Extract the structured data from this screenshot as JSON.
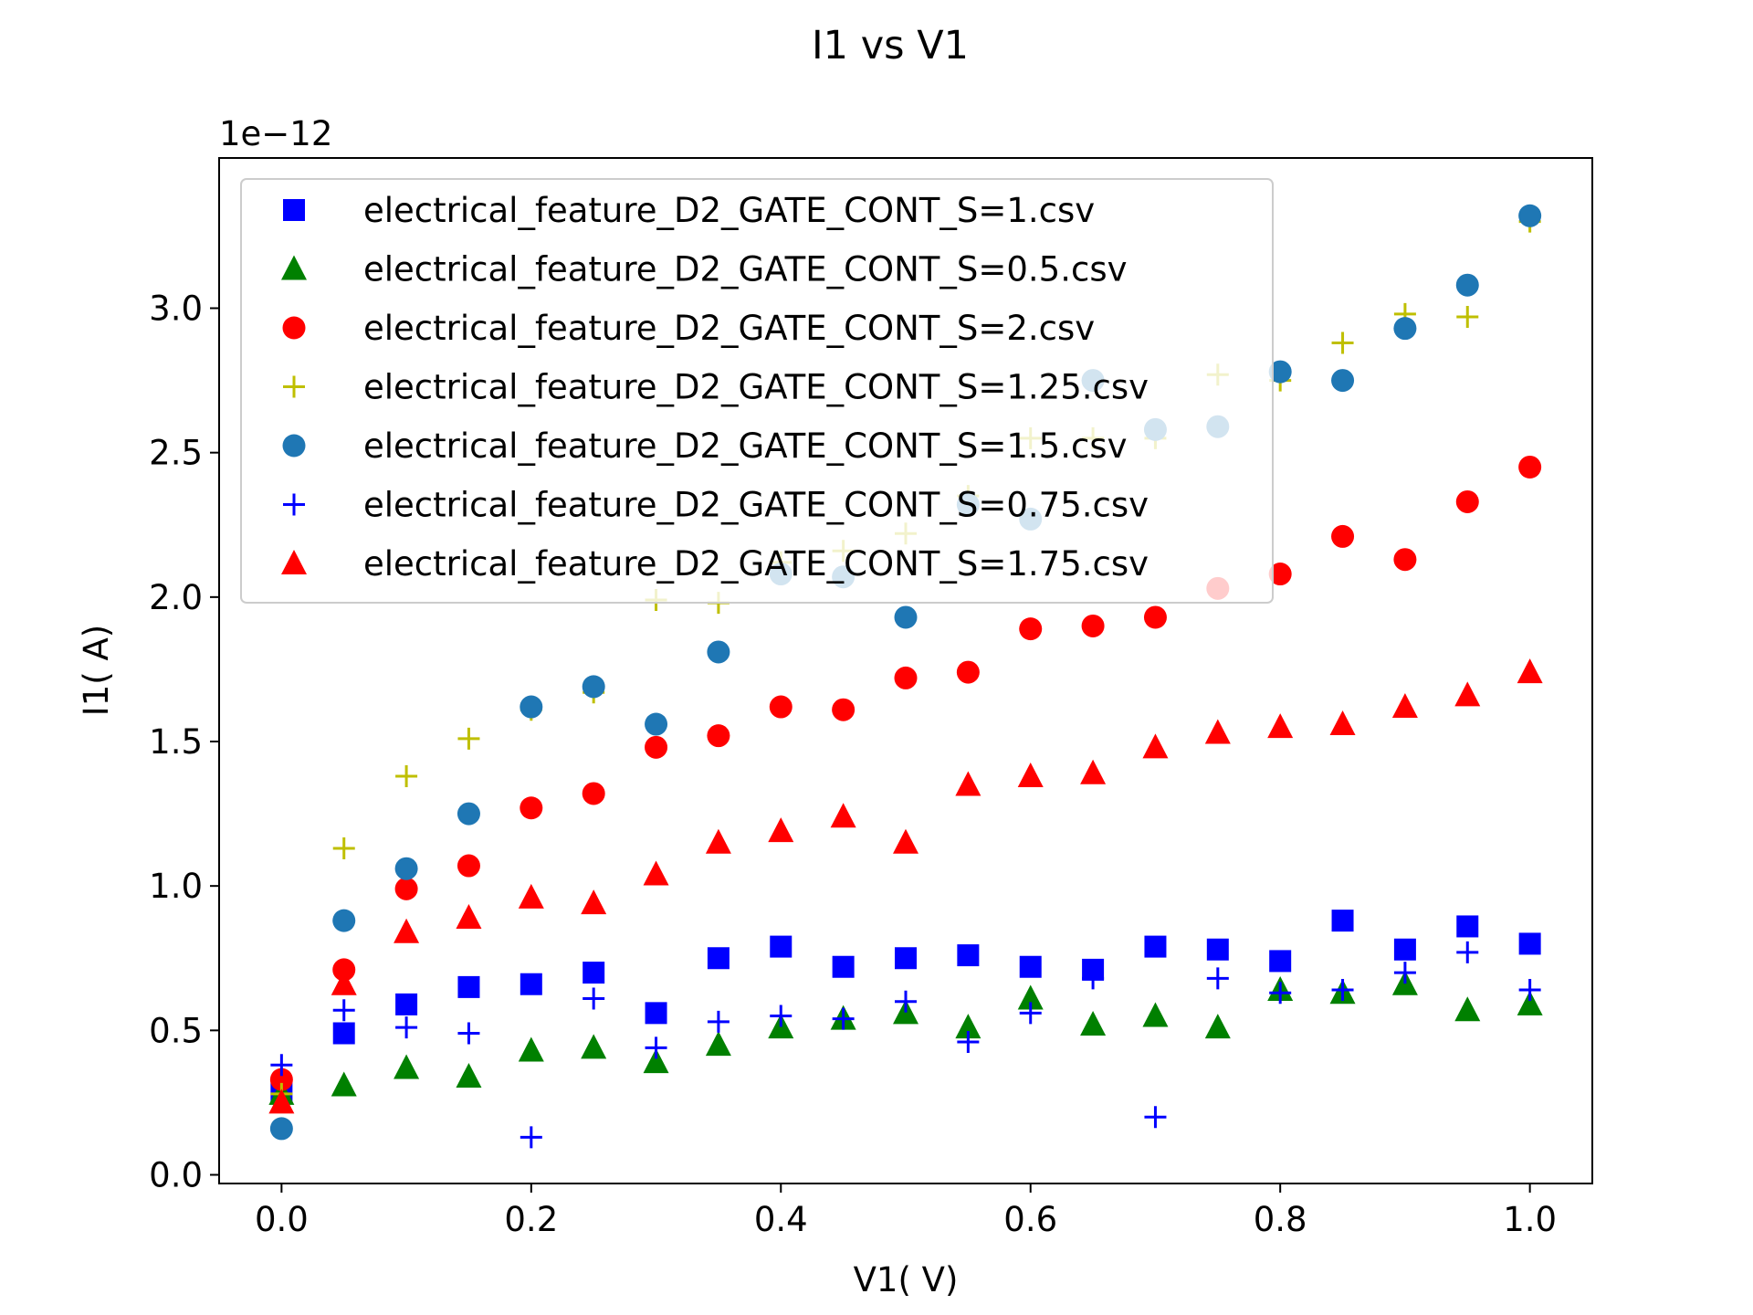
{
  "chart_data": {
    "type": "scatter",
    "title": "I1 vs V1",
    "xlabel": "V1( V)",
    "ylabel": "I1( A)",
    "y_offset_label": "1e−12",
    "xlim": [
      -0.05,
      1.05
    ],
    "ylim": [
      -0.03,
      3.52
    ],
    "xticks": [
      0.0,
      0.2,
      0.4,
      0.6,
      0.8,
      1.0
    ],
    "xtick_labels": [
      "0.0",
      "0.2",
      "0.4",
      "0.6",
      "0.8",
      "1.0"
    ],
    "yticks": [
      0.0,
      0.5,
      1.0,
      1.5,
      2.0,
      2.5,
      3.0
    ],
    "ytick_labels": [
      "0.0",
      "0.5",
      "1.0",
      "1.5",
      "2.0",
      "2.5",
      "3.0"
    ],
    "grid": false,
    "legend_position": "upper-left",
    "x": [
      0.0,
      0.05,
      0.1,
      0.15,
      0.2,
      0.25,
      0.3,
      0.35,
      0.4,
      0.45,
      0.5,
      0.55,
      0.6,
      0.65,
      0.7,
      0.75,
      0.8,
      0.85,
      0.9,
      0.95,
      1.0
    ],
    "series": [
      {
        "name": "electrical_feature_D2_GATE_CONT_S=1.csv",
        "marker": "square",
        "color": "#0000ff",
        "values": [
          0.29,
          0.49,
          0.59,
          0.65,
          0.66,
          0.7,
          0.56,
          0.75,
          0.79,
          0.72,
          0.75,
          0.76,
          0.72,
          0.71,
          0.79,
          0.78,
          0.74,
          0.88,
          0.78,
          0.86,
          0.8
        ]
      },
      {
        "name": "electrical_feature_D2_GATE_CONT_S=0.5.csv",
        "marker": "triangle",
        "color": "#008000",
        "values": [
          0.28,
          0.31,
          0.37,
          0.34,
          0.43,
          0.44,
          0.39,
          0.45,
          0.51,
          0.54,
          0.56,
          0.51,
          0.61,
          0.52,
          0.55,
          0.51,
          0.64,
          0.63,
          0.66,
          0.57,
          0.59
        ]
      },
      {
        "name": "electrical_feature_D2_GATE_CONT_S=2.csv",
        "marker": "circle",
        "color": "#ff0000",
        "values": [
          0.33,
          0.71,
          0.99,
          1.07,
          1.27,
          1.32,
          1.48,
          1.52,
          1.62,
          1.61,
          1.72,
          1.74,
          1.89,
          1.9,
          1.93,
          2.03,
          2.08,
          2.21,
          2.13,
          2.33,
          2.45
        ]
      },
      {
        "name": "electrical_feature_D2_GATE_CONT_S=1.25.csv",
        "marker": "plus",
        "color": "#bfbf00",
        "values": [
          0.28,
          1.13,
          1.38,
          1.51,
          1.61,
          1.67,
          1.99,
          1.98,
          2.12,
          2.16,
          2.22,
          2.35,
          2.55,
          2.55,
          2.55,
          2.77,
          2.75,
          2.88,
          2.98,
          2.97,
          3.3
        ]
      },
      {
        "name": "electrical_feature_D2_GATE_CONT_S=1.5.csv",
        "marker": "circle",
        "color": "#1f77b4",
        "values": [
          0.16,
          0.88,
          1.06,
          1.25,
          1.62,
          1.69,
          1.56,
          1.81,
          2.08,
          2.07,
          1.93,
          2.32,
          2.27,
          2.75,
          2.58,
          2.59,
          2.78,
          2.75,
          2.93,
          3.08,
          3.32
        ]
      },
      {
        "name": "electrical_feature_D2_GATE_CONT_S=0.75.csv",
        "marker": "plus",
        "color": "#0000ff",
        "values": [
          0.38,
          0.57,
          0.51,
          0.49,
          0.13,
          0.61,
          0.44,
          0.53,
          0.55,
          0.54,
          0.6,
          0.46,
          0.56,
          0.68,
          0.2,
          0.68,
          0.63,
          0.64,
          0.7,
          0.77,
          0.64
        ]
      },
      {
        "name": "electrical_feature_D2_GATE_CONT_S=1.75.csv",
        "marker": "triangle",
        "color": "#ff0000",
        "values": [
          0.25,
          0.66,
          0.84,
          0.89,
          0.96,
          0.94,
          1.04,
          1.15,
          1.19,
          1.24,
          1.15,
          1.35,
          1.38,
          1.39,
          1.48,
          1.53,
          1.55,
          1.56,
          1.62,
          1.66,
          1.74
        ]
      }
    ]
  }
}
